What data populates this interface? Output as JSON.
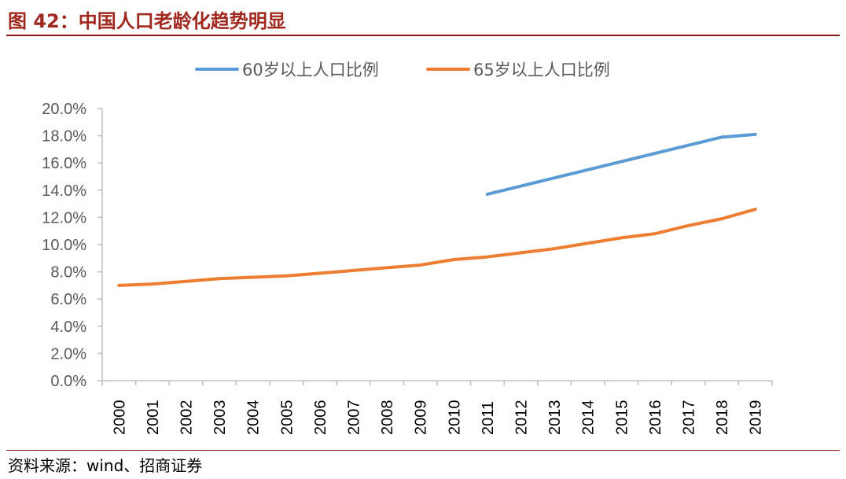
{
  "figure": {
    "title": "图 42：中国人口老龄化趋势明显",
    "source": "资料来源：wind、招商证券"
  },
  "colors": {
    "title": "#A0281E",
    "rule": "#8B1A14",
    "axis": "#BFBFBF",
    "tick_text": "#595959"
  },
  "chart_data": {
    "type": "line",
    "title": "",
    "xlabel": "",
    "ylabel": "",
    "categories": [
      "2000",
      "2001",
      "2002",
      "2003",
      "2004",
      "2005",
      "2006",
      "2007",
      "2008",
      "2009",
      "2010",
      "2011",
      "2012",
      "2013",
      "2014",
      "2015",
      "2016",
      "2017",
      "2018",
      "2019"
    ],
    "ylim": [
      0,
      0.2
    ],
    "yticks": [
      "0.0%",
      "2.0%",
      "4.0%",
      "6.0%",
      "8.0%",
      "10.0%",
      "12.0%",
      "14.0%",
      "16.0%",
      "18.0%",
      "20.0%"
    ],
    "grid": false,
    "legend_position": "top",
    "series": [
      {
        "name": "60岁以上人口比例",
        "color": "#5B9BD5",
        "values": [
          null,
          null,
          null,
          null,
          null,
          null,
          null,
          null,
          null,
          null,
          null,
          0.137,
          0.143,
          0.149,
          0.155,
          0.161,
          0.167,
          0.173,
          0.179,
          0.181
        ]
      },
      {
        "name": "65岁以上人口比例",
        "color": "#ED7D31",
        "values": [
          0.07,
          0.071,
          0.073,
          0.075,
          0.076,
          0.077,
          0.079,
          0.081,
          0.083,
          0.085,
          0.089,
          0.091,
          0.094,
          0.097,
          0.101,
          0.105,
          0.108,
          0.114,
          0.119,
          0.126
        ]
      }
    ]
  }
}
